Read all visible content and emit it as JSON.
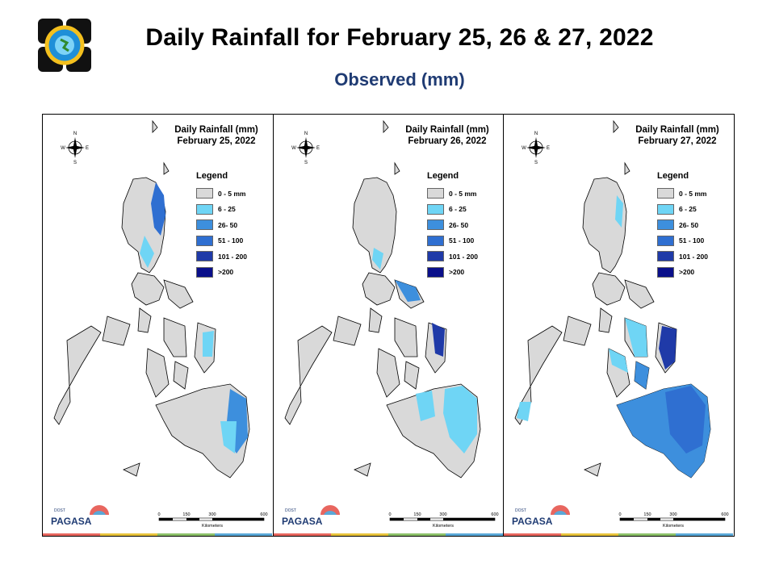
{
  "header": {
    "title": "Daily Rainfall for February 25, 26 & 27, 2022",
    "subtitle": "Observed (mm)"
  },
  "legend": {
    "title": "Legend",
    "items": [
      {
        "label": "0 - 5 mm",
        "color": "#d9d9d9"
      },
      {
        "label": "6 - 25",
        "color": "#6fd5f5"
      },
      {
        "label": "26- 50",
        "color": "#3d8fdd"
      },
      {
        "label": "51 - 100",
        "color": "#2f6fd1"
      },
      {
        "label": "101 - 200",
        "color": "#1f3aa8"
      },
      {
        "label": ">200",
        "color": "#0a0f8a"
      }
    ]
  },
  "panels": [
    {
      "title": "Daily Rainfall (mm)",
      "date": "February 25, 2022"
    },
    {
      "title": "Daily Rainfall (mm)",
      "date": "February 26, 2022"
    },
    {
      "title": "Daily Rainfall (mm)",
      "date": "February 27, 2022"
    }
  ],
  "compass": {
    "n": "N",
    "s": "S",
    "e": "E",
    "w": "W"
  },
  "scale": {
    "ticks": [
      "0",
      "150",
      "300",
      "600"
    ],
    "unit": "Kilometers"
  },
  "brand": {
    "name": "PAGASA",
    "prefix": "DOST"
  },
  "colors": {
    "land": "#d9d9d9",
    "stripe": [
      "#e8665f",
      "#e8c33c",
      "#8cc16a",
      "#5aa8d8"
    ]
  }
}
